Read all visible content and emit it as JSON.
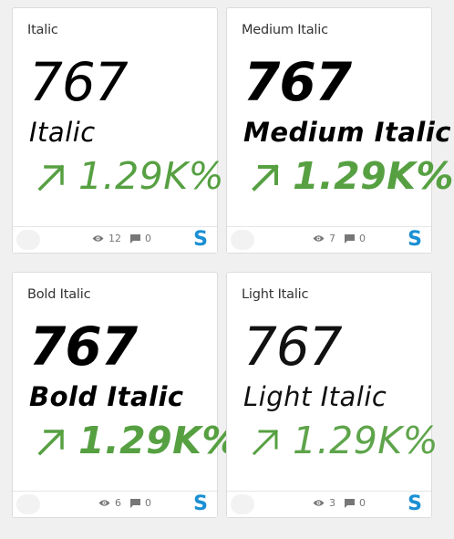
{
  "colors": {
    "trend_green": "#56a042",
    "source_blue": "#1a8fd3"
  },
  "cards": [
    {
      "title": "Italic",
      "value": "767",
      "style_label": "Italic",
      "trend": "1.29K%",
      "views": "12",
      "comments": "0",
      "source_letter": "S"
    },
    {
      "title": "Medium Italic",
      "value": "767",
      "style_label": "Medium Italic",
      "trend": "1.29K%",
      "views": "7",
      "comments": "0",
      "source_letter": "S"
    },
    {
      "title": "Bold Italic",
      "value": "767",
      "style_label": "Bold Italic",
      "trend": "1.29K%",
      "views": "6",
      "comments": "0",
      "source_letter": "S"
    },
    {
      "title": "Light Italic",
      "value": "767",
      "style_label": "Light Italic",
      "trend": "1.29K%",
      "views": "3",
      "comments": "0",
      "source_letter": "S"
    }
  ]
}
